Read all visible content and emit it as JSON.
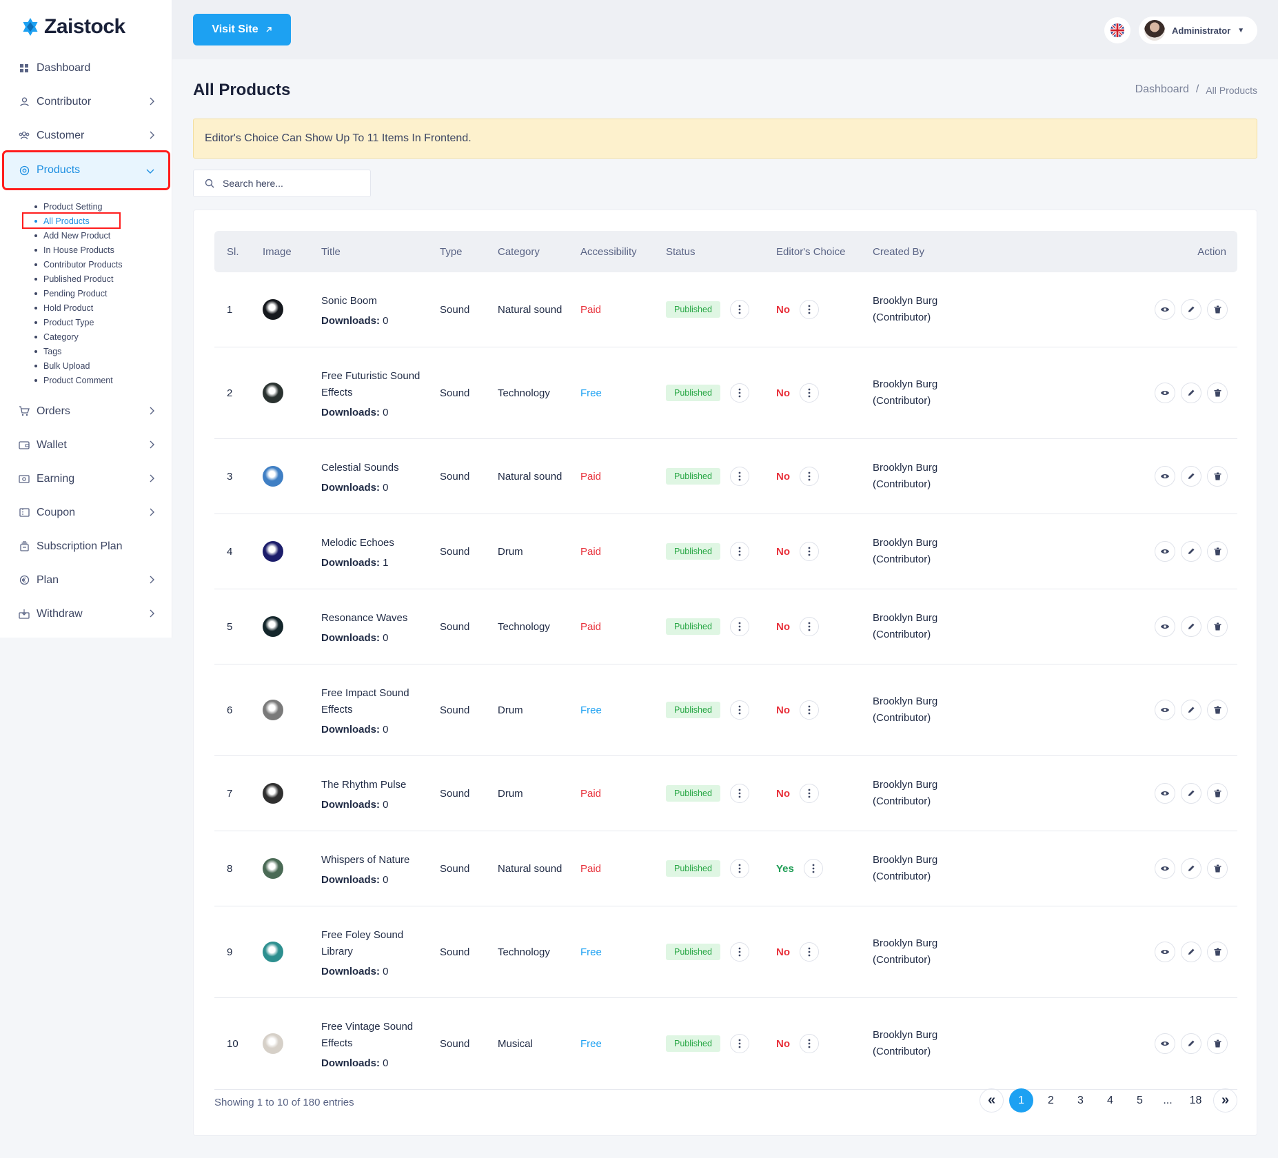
{
  "brand": {
    "name": "Zaistock",
    "accent": "#1da1f2"
  },
  "sidebar": {
    "items": [
      {
        "label": "Dashboard",
        "icon": "grid-icon",
        "has_children": false
      },
      {
        "label": "Contributor",
        "icon": "user-icon",
        "has_children": true
      },
      {
        "label": "Customer",
        "icon": "users-icon",
        "has_children": true
      },
      {
        "label": "Products",
        "icon": "products-icon",
        "has_children": true,
        "expanded": true
      },
      {
        "label": "Orders",
        "icon": "cart-icon",
        "has_children": true
      },
      {
        "label": "Wallet",
        "icon": "wallet-icon",
        "has_children": true
      },
      {
        "label": "Earning",
        "icon": "money-icon",
        "has_children": true
      },
      {
        "label": "Coupon",
        "icon": "coupon-icon",
        "has_children": true
      },
      {
        "label": "Subscription Plan",
        "icon": "subscription-icon",
        "has_children": false
      },
      {
        "label": "Plan",
        "icon": "euro-icon",
        "has_children": true
      },
      {
        "label": "Withdraw",
        "icon": "withdraw-icon",
        "has_children": true
      }
    ],
    "products_sub": [
      "Product Setting",
      "All Products",
      "Add New Product",
      "In House Products",
      "Contributor Products",
      "Published Product",
      "Pending Product",
      "Hold Product",
      "Product Type",
      "Category",
      "Tags",
      "Bulk Upload",
      "Product Comment"
    ]
  },
  "topbar": {
    "visit_label": "Visit Site",
    "user_name": "Administrator"
  },
  "page": {
    "title": "All Products",
    "breadcrumb": [
      "Dashboard",
      "/",
      "All Products"
    ],
    "notice": "Editor's Choice Can Show Up To 11 Items In Frontend.",
    "search_placeholder": "Search here..."
  },
  "table": {
    "headers": [
      "Sl.",
      "Image",
      "Title",
      "Type",
      "Category",
      "Accessibility",
      "Status",
      "Editor's Choice",
      "Created By",
      "Action"
    ],
    "downloads_label": "Downloads:",
    "rows": [
      {
        "sl": "1",
        "title": "Sonic Boom",
        "downloads": "0",
        "type": "Sound",
        "category": "Natural sound",
        "access": "Paid",
        "status": "Published",
        "editor": "No",
        "creator": "Brooklyn Burg",
        "role": "(Contributor)",
        "thumb": "#15181d"
      },
      {
        "sl": "2",
        "title": "Free Futuristic Sound Effects",
        "downloads": "0",
        "type": "Sound",
        "category": "Technology",
        "access": "Free",
        "status": "Published",
        "editor": "No",
        "creator": "Brooklyn Burg",
        "role": "(Contributor)",
        "thumb": "#2a3230"
      },
      {
        "sl": "3",
        "title": "Celestial Sounds",
        "downloads": "0",
        "type": "Sound",
        "category": "Natural sound",
        "access": "Paid",
        "status": "Published",
        "editor": "No",
        "creator": "Brooklyn Burg",
        "role": "(Contributor)",
        "thumb": "#3f7fc4"
      },
      {
        "sl": "4",
        "title": "Melodic Echoes",
        "downloads": "1",
        "type": "Sound",
        "category": "Drum",
        "access": "Paid",
        "status": "Published",
        "editor": "No",
        "creator": "Brooklyn Burg",
        "role": "(Contributor)",
        "thumb": "#1c1d6b"
      },
      {
        "sl": "5",
        "title": "Resonance Waves",
        "downloads": "0",
        "type": "Sound",
        "category": "Technology",
        "access": "Paid",
        "status": "Published",
        "editor": "No",
        "creator": "Brooklyn Burg",
        "role": "(Contributor)",
        "thumb": "#14262b"
      },
      {
        "sl": "6",
        "title": "Free Impact Sound Effects",
        "downloads": "0",
        "type": "Sound",
        "category": "Drum",
        "access": "Free",
        "status": "Published",
        "editor": "No",
        "creator": "Brooklyn Burg",
        "role": "(Contributor)",
        "thumb": "#7a7a7a"
      },
      {
        "sl": "7",
        "title": "The Rhythm Pulse",
        "downloads": "0",
        "type": "Sound",
        "category": "Drum",
        "access": "Paid",
        "status": "Published",
        "editor": "No",
        "creator": "Brooklyn Burg",
        "role": "(Contributor)",
        "thumb": "#303030"
      },
      {
        "sl": "8",
        "title": "Whispers of Nature",
        "downloads": "0",
        "type": "Sound",
        "category": "Natural sound",
        "access": "Paid",
        "status": "Published",
        "editor": "Yes",
        "creator": "Brooklyn Burg",
        "role": "(Contributor)",
        "thumb": "#4a6a55"
      },
      {
        "sl": "9",
        "title": "Free Foley Sound Library",
        "downloads": "0",
        "type": "Sound",
        "category": "Technology",
        "access": "Free",
        "status": "Published",
        "editor": "No",
        "creator": "Brooklyn Burg",
        "role": "(Contributor)",
        "thumb": "#2d8f8f"
      },
      {
        "sl": "10",
        "title": "Free Vintage Sound Effects",
        "downloads": "0",
        "type": "Sound",
        "category": "Musical",
        "access": "Free",
        "status": "Published",
        "editor": "No",
        "creator": "Brooklyn Burg",
        "role": "(Contributor)",
        "thumb": "#d6d0c8"
      }
    ]
  },
  "footer": {
    "showing": "Showing 1 to 10 of 180 entries",
    "pages": [
      "1",
      "2",
      "3",
      "4",
      "5",
      "...",
      "18"
    ],
    "current_page": "1"
  }
}
